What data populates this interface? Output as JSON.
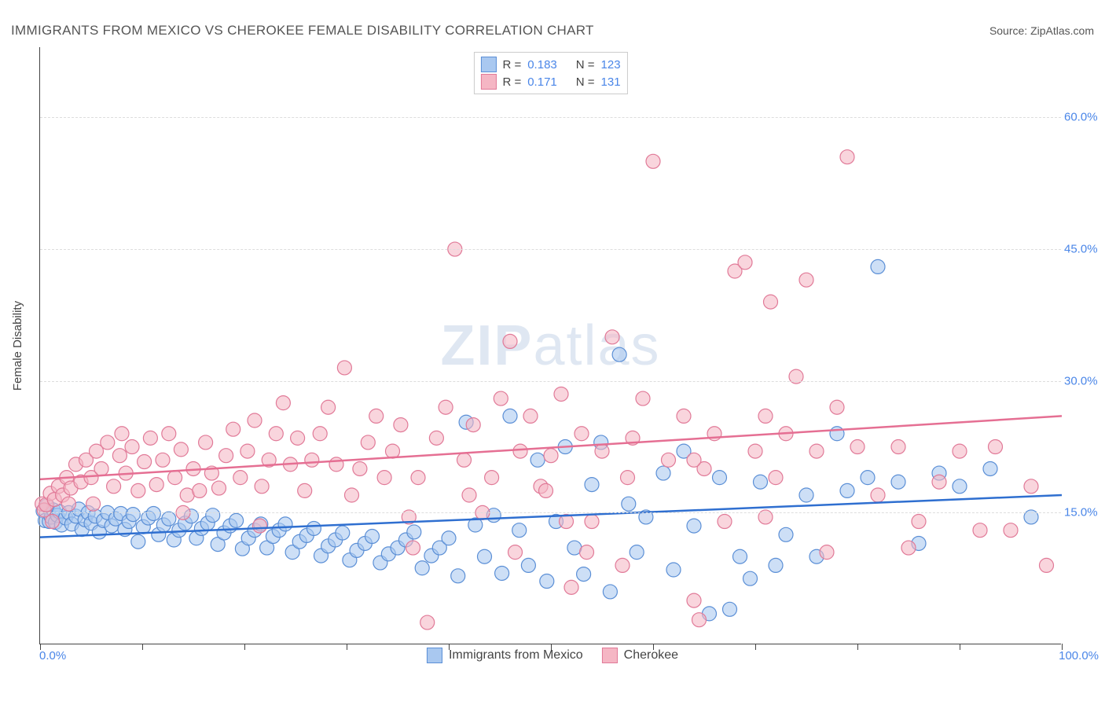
{
  "title": "IMMIGRANTS FROM MEXICO VS CHEROKEE FEMALE DISABILITY CORRELATION CHART",
  "source": "Source: ZipAtlas.com",
  "watermark": {
    "part1": "ZIP",
    "part2": "atlas"
  },
  "y_axis": {
    "title": "Female Disability",
    "ticks": [
      15.0,
      30.0,
      45.0,
      60.0
    ],
    "tick_labels": [
      "15.0%",
      "30.0%",
      "45.0%",
      "60.0%"
    ],
    "min": 0,
    "max": 68
  },
  "x_axis": {
    "min": 0,
    "max": 100,
    "left_label": "0.0%",
    "right_label": "100.0%",
    "tick_positions": [
      0,
      10,
      20,
      30,
      40,
      50,
      60,
      70,
      80,
      90,
      100
    ]
  },
  "chart": {
    "type": "scatter",
    "background_color": "#ffffff",
    "grid_color": "#dddddd",
    "axis_color": "#444444",
    "marker_radius": 9,
    "marker_opacity": 0.58,
    "series": [
      {
        "name": "Immigrants from Mexico",
        "fill": "#a9c8f0",
        "stroke": "#5b8fd6",
        "trend_color": "#2f6fd0",
        "R": 0.183,
        "N": 123,
        "trend": {
          "y_at_x0": 12.2,
          "y_at_x100": 17.0
        },
        "points": [
          [
            0.3,
            15.2
          ],
          [
            0.5,
            14.1
          ],
          [
            0.7,
            15.8
          ],
          [
            0.9,
            14.0
          ],
          [
            1.1,
            14.5
          ],
          [
            1.3,
            15.3
          ],
          [
            1.5,
            13.9
          ],
          [
            1.7,
            14.7
          ],
          [
            1.9,
            15.1
          ],
          [
            2.1,
            13.6
          ],
          [
            2.5,
            14.4
          ],
          [
            2.8,
            15.0
          ],
          [
            3.1,
            13.7
          ],
          [
            3.5,
            14.6
          ],
          [
            3.8,
            15.4
          ],
          [
            4.1,
            13.1
          ],
          [
            4.4,
            14.2
          ],
          [
            4.7,
            15.0
          ],
          [
            5.0,
            13.8
          ],
          [
            5.4,
            14.6
          ],
          [
            5.8,
            12.8
          ],
          [
            6.2,
            14.1
          ],
          [
            6.6,
            15.0
          ],
          [
            7.0,
            13.5
          ],
          [
            7.4,
            14.3
          ],
          [
            7.9,
            14.9
          ],
          [
            8.3,
            13.1
          ],
          [
            8.7,
            14.0
          ],
          [
            9.1,
            14.8
          ],
          [
            9.6,
            11.7
          ],
          [
            10.1,
            13.4
          ],
          [
            10.6,
            14.4
          ],
          [
            11.1,
            14.9
          ],
          [
            11.6,
            12.5
          ],
          [
            12.1,
            13.6
          ],
          [
            12.6,
            14.3
          ],
          [
            13.1,
            11.9
          ],
          [
            13.6,
            13.0
          ],
          [
            14.2,
            13.8
          ],
          [
            14.8,
            14.6
          ],
          [
            15.3,
            12.1
          ],
          [
            15.8,
            13.2
          ],
          [
            16.4,
            13.8
          ],
          [
            16.9,
            14.7
          ],
          [
            17.4,
            11.4
          ],
          [
            18.0,
            12.7
          ],
          [
            18.6,
            13.5
          ],
          [
            19.2,
            14.1
          ],
          [
            19.8,
            10.9
          ],
          [
            20.4,
            12.1
          ],
          [
            21.0,
            13.0
          ],
          [
            21.6,
            13.7
          ],
          [
            22.2,
            11.0
          ],
          [
            22.8,
            12.3
          ],
          [
            23.4,
            13.0
          ],
          [
            24.0,
            13.7
          ],
          [
            24.7,
            10.5
          ],
          [
            25.4,
            11.7
          ],
          [
            26.1,
            12.4
          ],
          [
            26.8,
            13.2
          ],
          [
            27.5,
            10.1
          ],
          [
            28.2,
            11.2
          ],
          [
            28.9,
            11.9
          ],
          [
            29.6,
            12.7
          ],
          [
            30.3,
            9.6
          ],
          [
            31.0,
            10.7
          ],
          [
            31.8,
            11.5
          ],
          [
            32.5,
            12.3
          ],
          [
            33.3,
            9.3
          ],
          [
            34.1,
            10.3
          ],
          [
            35.0,
            11.0
          ],
          [
            35.8,
            11.9
          ],
          [
            36.6,
            12.8
          ],
          [
            37.4,
            8.7
          ],
          [
            38.3,
            10.1
          ],
          [
            39.1,
            11.0
          ],
          [
            40.0,
            12.1
          ],
          [
            40.9,
            7.8
          ],
          [
            41.7,
            25.3
          ],
          [
            42.6,
            13.6
          ],
          [
            43.5,
            10.0
          ],
          [
            44.4,
            14.7
          ],
          [
            45.2,
            8.1
          ],
          [
            46.0,
            26.0
          ],
          [
            46.9,
            13.0
          ],
          [
            47.8,
            9.0
          ],
          [
            48.7,
            21.0
          ],
          [
            49.6,
            7.2
          ],
          [
            50.5,
            14.0
          ],
          [
            51.4,
            22.5
          ],
          [
            52.3,
            11.0
          ],
          [
            53.2,
            8.0
          ],
          [
            54.0,
            18.2
          ],
          [
            54.9,
            23.0
          ],
          [
            55.8,
            6.0
          ],
          [
            56.7,
            33.0
          ],
          [
            57.6,
            16.0
          ],
          [
            58.4,
            10.5
          ],
          [
            59.3,
            14.5
          ],
          [
            61.0,
            19.5
          ],
          [
            62.0,
            8.5
          ],
          [
            63.0,
            22.0
          ],
          [
            64.0,
            13.5
          ],
          [
            65.5,
            3.5
          ],
          [
            66.5,
            19.0
          ],
          [
            67.5,
            4.0
          ],
          [
            68.5,
            10.0
          ],
          [
            69.5,
            7.5
          ],
          [
            70.5,
            18.5
          ],
          [
            72.0,
            9.0
          ],
          [
            73.0,
            12.5
          ],
          [
            75.0,
            17.0
          ],
          [
            76.0,
            10.0
          ],
          [
            78.0,
            24.0
          ],
          [
            79.0,
            17.5
          ],
          [
            81.0,
            19.0
          ],
          [
            82.0,
            43.0
          ],
          [
            84.0,
            18.5
          ],
          [
            86.0,
            11.5
          ],
          [
            88.0,
            19.5
          ],
          [
            90.0,
            18.0
          ],
          [
            93.0,
            20.0
          ],
          [
            97.0,
            14.5
          ]
        ]
      },
      {
        "name": "Cherokee",
        "fill": "#f5b6c4",
        "stroke": "#e17a98",
        "trend_color": "#e56f93",
        "R": 0.171,
        "N": 131,
        "trend": {
          "y_at_x0": 18.8,
          "y_at_x100": 26.0
        },
        "points": [
          [
            0.2,
            16.0
          ],
          [
            0.4,
            15.3
          ],
          [
            0.6,
            15.9
          ],
          [
            1.0,
            17.2
          ],
          [
            1.4,
            16.5
          ],
          [
            1.8,
            18.0
          ],
          [
            2.2,
            17.0
          ],
          [
            2.6,
            19.0
          ],
          [
            3.0,
            17.8
          ],
          [
            3.5,
            20.5
          ],
          [
            4.0,
            18.5
          ],
          [
            4.5,
            21.0
          ],
          [
            5.0,
            19.0
          ],
          [
            5.5,
            22.0
          ],
          [
            6.0,
            20.0
          ],
          [
            6.6,
            23.0
          ],
          [
            7.2,
            18.0
          ],
          [
            7.8,
            21.5
          ],
          [
            8.4,
            19.5
          ],
          [
            9.0,
            22.5
          ],
          [
            9.6,
            17.5
          ],
          [
            10.2,
            20.8
          ],
          [
            10.8,
            23.5
          ],
          [
            11.4,
            18.2
          ],
          [
            12.0,
            21.0
          ],
          [
            12.6,
            24.0
          ],
          [
            13.2,
            19.0
          ],
          [
            13.8,
            22.2
          ],
          [
            14.4,
            17.0
          ],
          [
            15.0,
            20.0
          ],
          [
            15.6,
            17.5
          ],
          [
            16.2,
            23.0
          ],
          [
            16.8,
            19.5
          ],
          [
            17.5,
            17.8
          ],
          [
            18.2,
            21.5
          ],
          [
            18.9,
            24.5
          ],
          [
            19.6,
            19.0
          ],
          [
            20.3,
            22.0
          ],
          [
            21.0,
            25.5
          ],
          [
            21.7,
            18.0
          ],
          [
            22.4,
            21.0
          ],
          [
            23.1,
            24.0
          ],
          [
            23.8,
            27.5
          ],
          [
            24.5,
            20.5
          ],
          [
            25.2,
            23.5
          ],
          [
            25.9,
            17.5
          ],
          [
            26.6,
            21.0
          ],
          [
            27.4,
            24.0
          ],
          [
            28.2,
            27.0
          ],
          [
            29.0,
            20.5
          ],
          [
            29.8,
            31.5
          ],
          [
            30.5,
            17.0
          ],
          [
            31.3,
            20.0
          ],
          [
            32.1,
            23.0
          ],
          [
            32.9,
            26.0
          ],
          [
            33.7,
            19.0
          ],
          [
            34.5,
            22.0
          ],
          [
            35.3,
            25.0
          ],
          [
            36.1,
            14.5
          ],
          [
            37.0,
            19.0
          ],
          [
            37.9,
            2.5
          ],
          [
            38.8,
            23.5
          ],
          [
            39.7,
            27.0
          ],
          [
            40.6,
            45.0
          ],
          [
            41.5,
            21.0
          ],
          [
            42.4,
            25.0
          ],
          [
            43.3,
            15.0
          ],
          [
            44.2,
            19.0
          ],
          [
            45.1,
            28.0
          ],
          [
            46.0,
            34.5
          ],
          [
            47.0,
            22.0
          ],
          [
            48.0,
            26.0
          ],
          [
            49.0,
            18.0
          ],
          [
            50.0,
            21.5
          ],
          [
            51.0,
            28.5
          ],
          [
            52.0,
            6.5
          ],
          [
            53.0,
            24.0
          ],
          [
            54.0,
            14.0
          ],
          [
            55.0,
            22.0
          ],
          [
            56.0,
            35.0
          ],
          [
            57.0,
            9.0
          ],
          [
            58.0,
            23.5
          ],
          [
            59.0,
            28.0
          ],
          [
            60.0,
            55.0
          ],
          [
            61.5,
            21.0
          ],
          [
            63.0,
            26.0
          ],
          [
            64.0,
            5.0
          ],
          [
            65.0,
            20.0
          ],
          [
            66.0,
            24.0
          ],
          [
            67.0,
            14.0
          ],
          [
            68.0,
            42.5
          ],
          [
            69.0,
            43.5
          ],
          [
            70.0,
            22.0
          ],
          [
            71.0,
            26.0
          ],
          [
            71.5,
            39.0
          ],
          [
            72.0,
            19.0
          ],
          [
            73.0,
            24.0
          ],
          [
            74.0,
            30.5
          ],
          [
            75.0,
            41.5
          ],
          [
            76.0,
            22.0
          ],
          [
            77.0,
            10.5
          ],
          [
            78.0,
            27.0
          ],
          [
            79.0,
            55.5
          ],
          [
            80.0,
            22.5
          ],
          [
            82.0,
            17.0
          ],
          [
            84.0,
            22.5
          ],
          [
            86.0,
            14.0
          ],
          [
            88.0,
            18.5
          ],
          [
            90.0,
            22.0
          ],
          [
            92.0,
            13.0
          ],
          [
            93.5,
            22.5
          ],
          [
            95.0,
            13.0
          ],
          [
            97.0,
            18.0
          ],
          [
            98.5,
            9.0
          ],
          [
            64.5,
            2.8
          ],
          [
            49.5,
            17.5
          ],
          [
            42.0,
            17.0
          ],
          [
            46.5,
            10.5
          ],
          [
            57.5,
            19.0
          ],
          [
            53.5,
            10.5
          ],
          [
            85.0,
            11.0
          ],
          [
            36.5,
            11.0
          ],
          [
            21.5,
            13.5
          ],
          [
            14.0,
            15.0
          ],
          [
            8.0,
            24.0
          ],
          [
            5.2,
            16.0
          ],
          [
            2.8,
            16.0
          ],
          [
            1.2,
            14.0
          ],
          [
            64.0,
            21.0
          ],
          [
            71.0,
            14.5
          ],
          [
            51.5,
            14.0
          ]
        ]
      }
    ]
  },
  "legend_top": {
    "rows": [
      {
        "swatch_fill": "#a9c8f0",
        "swatch_stroke": "#5b8fd6",
        "r_label": "R =",
        "r_value": "0.183",
        "n_label": "N =",
        "n_value": "123"
      },
      {
        "swatch_fill": "#f5b6c4",
        "swatch_stroke": "#e17a98",
        "r_label": "R =",
        "r_value": "0.171",
        "n_label": "N =",
        "n_value": "131"
      }
    ]
  },
  "legend_bottom": {
    "items": [
      {
        "swatch_fill": "#a9c8f0",
        "swatch_stroke": "#5b8fd6",
        "label": "Immigrants from Mexico"
      },
      {
        "swatch_fill": "#f5b6c4",
        "swatch_stroke": "#e17a98",
        "label": "Cherokee"
      }
    ]
  }
}
